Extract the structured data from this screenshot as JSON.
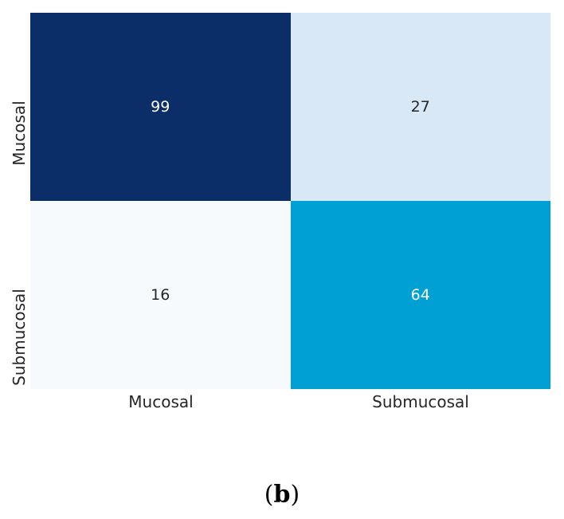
{
  "chart_data": {
    "type": "heatmap",
    "title": "",
    "xlabel": "",
    "ylabel": "",
    "x_categories": [
      "Mucosal",
      "Submucosal"
    ],
    "y_categories": [
      "Mucosal",
      "Submucosal"
    ],
    "values": [
      [
        99,
        27
      ],
      [
        16,
        64
      ]
    ],
    "cell_colors": [
      [
        "#0b2d68",
        "#d9e8f6"
      ],
      [
        "#f7fafd",
        "#00a0d4"
      ]
    ],
    "value_colors": [
      [
        "#ffffff",
        "#262626"
      ],
      [
        "#262626",
        "#ffffff"
      ]
    ],
    "axis_label_color": "#262626",
    "background": "#ffffff",
    "grid": false,
    "legend": "none",
    "colormap": "Blues-like"
  },
  "caption": {
    "open": "(",
    "letter": "b",
    "close": ")"
  }
}
